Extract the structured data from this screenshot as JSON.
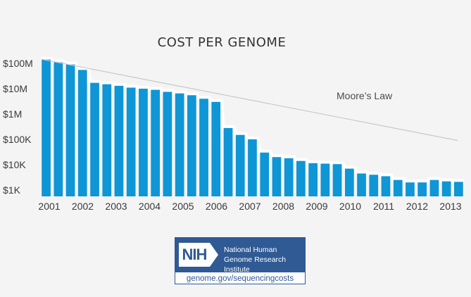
{
  "chart_data": {
    "type": "bar",
    "title": "COST PER GENOME",
    "y_scale": "log",
    "ylim": [
      1000,
      100000000
    ],
    "y_ticks": [
      {
        "value": 100000000,
        "label": "$100M"
      },
      {
        "value": 10000000,
        "label": "$10M"
      },
      {
        "value": 1000000,
        "label": "$1M"
      },
      {
        "value": 100000,
        "label": "$100K"
      },
      {
        "value": 10000,
        "label": "$10K"
      },
      {
        "value": 1000,
        "label": "$1K"
      }
    ],
    "x_labels": [
      "2001",
      "2002",
      "2003",
      "2004",
      "2005",
      "2006",
      "2007",
      "2008",
      "2009",
      "2010",
      "2011",
      "2012",
      "2013"
    ],
    "values": [
      140000000,
      110000000,
      90000000,
      55000000,
      17000000,
      15000000,
      13000000,
      11000000,
      10000000,
      9000000,
      7500000,
      6500000,
      5500000,
      4000000,
      3000000,
      280000,
      150000,
      100000,
      30000,
      20000,
      18000,
      14000,
      11500,
      11000,
      10500,
      7000,
      4500,
      4000,
      3500,
      2500,
      2000,
      2000,
      2500,
      2200,
      2100
    ],
    "series": [
      {
        "name": "Cost per genome",
        "color": "#0e96d6"
      },
      {
        "name": "Moore's Law",
        "color": "#c8c8c8",
        "start_value": 145000000,
        "end_value": 90000
      }
    ],
    "annotations": [
      "Moore’s Law"
    ],
    "grid": false,
    "legend": "none"
  },
  "logo": {
    "mark": "NIH",
    "org_name": "National Human Genome Research Institute",
    "url": "genome.gov/sequencingcosts"
  }
}
